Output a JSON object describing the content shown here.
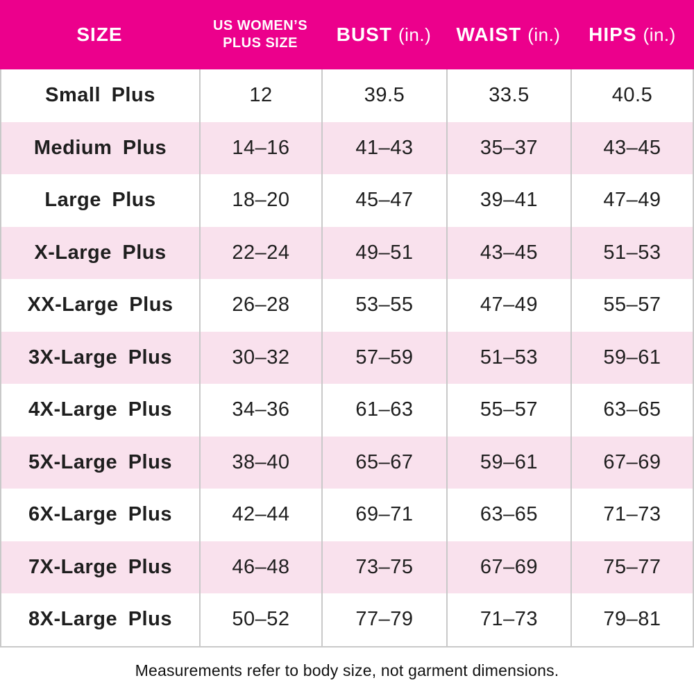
{
  "colors": {
    "header_bg": "#EC008C",
    "header_text": "#FFFFFF",
    "row_pink": "#F9E1ED",
    "row_white": "#FFFFFF",
    "grid_line": "#C9C9C9",
    "text": "#1E1E1E"
  },
  "header": {
    "size": "SIZE",
    "us_line1": "US WOMEN’S",
    "us_line2": "PLUS SIZE",
    "bust": "BUST",
    "waist": "WAIST",
    "hips": "HIPS",
    "unit": "(in.)"
  },
  "chart_data": {
    "type": "table",
    "columns": [
      "SIZE",
      "US WOMEN’S PLUS SIZE",
      "BUST (in.)",
      "WAIST (in.)",
      "HIPS (in.)"
    ],
    "rows": [
      [
        "Small Plus",
        "12",
        "39.5",
        "33.5",
        "40.5"
      ],
      [
        "Medium Plus",
        "14–16",
        "41–43",
        "35–37",
        "43–45"
      ],
      [
        "Large Plus",
        "18–20",
        "45–47",
        "39–41",
        "47–49"
      ],
      [
        "X-Large Plus",
        "22–24",
        "49–51",
        "43–45",
        "51–53"
      ],
      [
        "XX-Large Plus",
        "26–28",
        "53–55",
        "47–49",
        "55–57"
      ],
      [
        "3X-Large Plus",
        "30–32",
        "57–59",
        "51–53",
        "59–61"
      ],
      [
        "4X-Large Plus",
        "34–36",
        "61–63",
        "55–57",
        "63–65"
      ],
      [
        "5X-Large Plus",
        "38–40",
        "65–67",
        "59–61",
        "67–69"
      ],
      [
        "6X-Large Plus",
        "42–44",
        "69–71",
        "63–65",
        "71–73"
      ],
      [
        "7X-Large Plus",
        "46–48",
        "73–75",
        "67–69",
        "75–77"
      ],
      [
        "8X-Large Plus",
        "50–52",
        "77–79",
        "71–73",
        "79–81"
      ]
    ],
    "footnote": "Measurements refer to body size, not garment dimensions."
  },
  "footer": {
    "note": "Measurements refer to body size, not garment dimensions."
  }
}
